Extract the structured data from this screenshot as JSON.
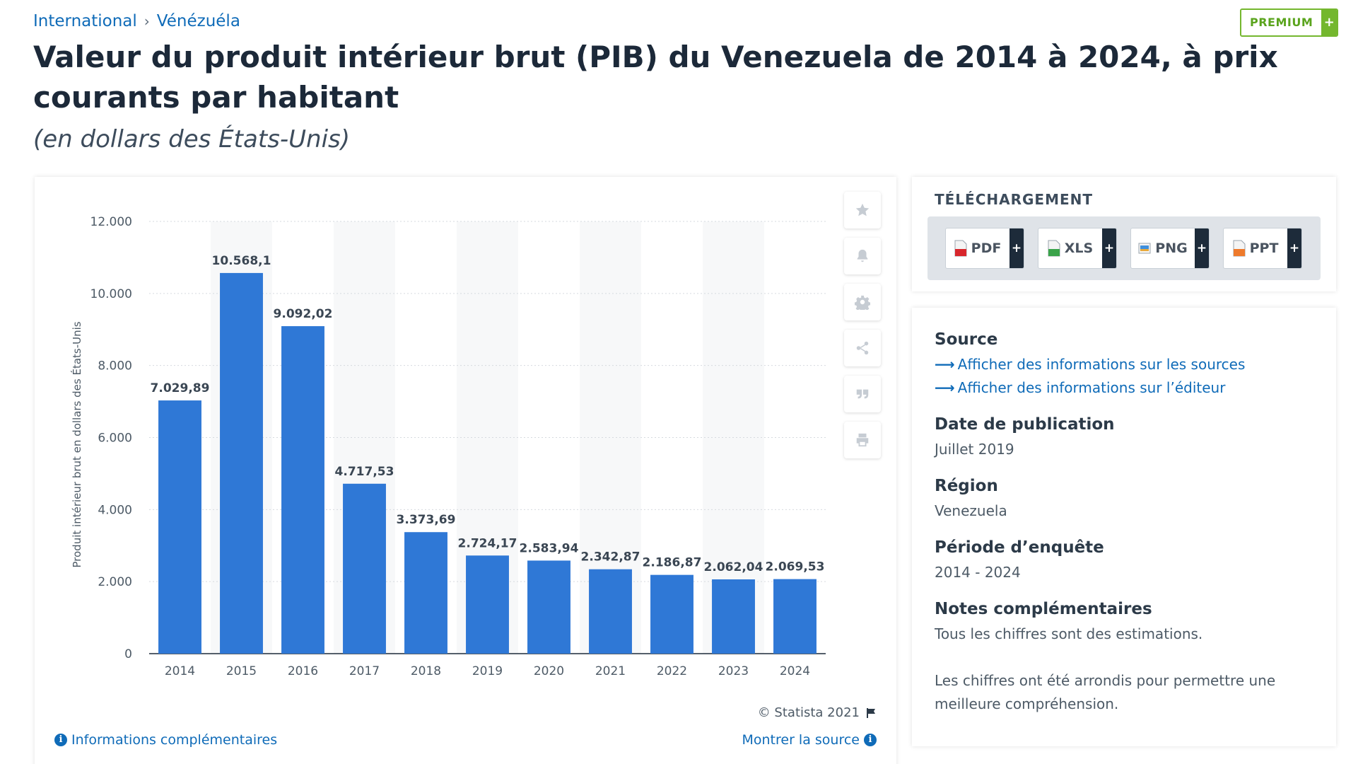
{
  "breadcrumb": {
    "root": "International",
    "separator": "›",
    "current": "Vénézuéla"
  },
  "premium": {
    "label": "PREMIUM",
    "plus": "+"
  },
  "header": {
    "title": "Valeur du produit intérieur brut (PIB) du Venezuela de 2014 à 2024, à prix courants par habitant",
    "subtitle": "(en dollars des États-Unis)"
  },
  "chart_data": {
    "type": "bar",
    "categories": [
      "2014",
      "2015",
      "2016",
      "2017",
      "2018",
      "2019",
      "2020",
      "2021",
      "2022",
      "2023",
      "2024"
    ],
    "values": [
      7029.89,
      10568.1,
      9092.02,
      4717.53,
      3373.69,
      2724.17,
      2583.94,
      2342.87,
      2186.87,
      2062.04,
      2069.53
    ],
    "value_labels": [
      "7.029,89",
      "10.568,1",
      "9.092,02",
      "4.717,53",
      "3.373,69",
      "2.724,17",
      "2.583,94",
      "2.342,87",
      "2.186,87",
      "2.062,04",
      "2.069,53"
    ],
    "ylabel": "Produit intérieur brut en dollars des États-Unis",
    "ylim": [
      0,
      12000
    ],
    "yticks": [
      0,
      2000,
      4000,
      6000,
      8000,
      10000,
      12000
    ],
    "ytick_labels": [
      "0",
      "2.000",
      "4.000",
      "6.000",
      "8.000",
      "10.000",
      "12.000"
    ],
    "grid": true,
    "bar_color": "#2f78d6"
  },
  "chart_tools": [
    "star-icon",
    "bell-icon",
    "gear-icon",
    "share-icon",
    "quote-icon",
    "print-icon"
  ],
  "chart_footer": {
    "credit": "© Statista 2021",
    "more_info": "Informations complémentaires",
    "show_source": "Montrer la source"
  },
  "download": {
    "title": "TÉLÉCHARGEMENT",
    "buttons": [
      {
        "label": "PDF",
        "plus": "+"
      },
      {
        "label": "XLS",
        "plus": "+"
      },
      {
        "label": "PNG",
        "plus": "+"
      },
      {
        "label": "PPT",
        "plus": "+"
      }
    ]
  },
  "info": {
    "source_head": "Source",
    "source_link_1": "Afficher des informations sur les sources",
    "source_link_2": "Afficher des informations sur l’éditeur",
    "pub_head": "Date de publication",
    "pub_val": "Juillet 2019",
    "region_head": "Région",
    "region_val": "Venezuela",
    "period_head": "Période d’enquête",
    "period_val": "2014 - 2024",
    "notes_head": "Notes complémentaires",
    "notes_1": "Tous les chiffres sont des estimations.",
    "notes_2": "Les chiffres ont été arrondis pour permettre une meilleure compréhension."
  }
}
